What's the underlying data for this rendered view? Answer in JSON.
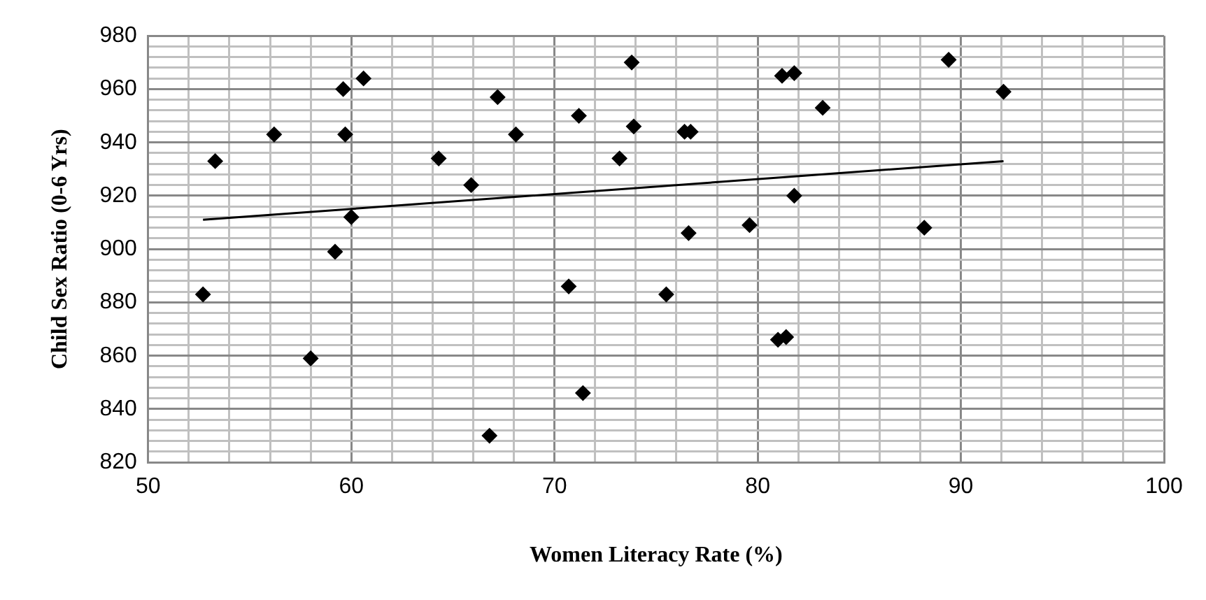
{
  "chart_data": {
    "type": "scatter",
    "xlabel": "Women Literacy Rate (%)",
    "ylabel": "Child Sex Ratio (0-6 Yrs)",
    "xlim": [
      50,
      100
    ],
    "ylim": [
      820,
      980
    ],
    "xticks": [
      50,
      {
        "value": 52,
        "label": null
      },
      {
        "value": 54,
        "label": null
      },
      {
        "value": 56,
        "label": null
      },
      {
        "value": 58,
        "label": null
      },
      60,
      {
        "value": 62,
        "label": null
      },
      {
        "value": 64,
        "label": null
      },
      {
        "value": 66,
        "label": null
      },
      {
        "value": 68,
        "label": null
      },
      70,
      {
        "value": 72,
        "label": null
      },
      {
        "value": 74,
        "label": null
      },
      {
        "value": 76,
        "label": null
      },
      {
        "value": 78,
        "label": null
      },
      80,
      {
        "value": 82,
        "label": null
      },
      {
        "value": 84,
        "label": null
      },
      {
        "value": 86,
        "label": null
      },
      {
        "value": 88,
        "label": null
      },
      90,
      {
        "value": 92,
        "label": null
      },
      {
        "value": 94,
        "label": null
      },
      {
        "value": 96,
        "label": null
      },
      {
        "value": 98,
        "label": null
      },
      100
    ],
    "yticks": [
      820,
      {
        "value": 824,
        "label": null
      },
      {
        "value": 828,
        "label": null
      },
      {
        "value": 832,
        "label": null
      },
      {
        "value": 836,
        "label": null
      },
      840,
      {
        "value": 844,
        "label": null
      },
      {
        "value": 848,
        "label": null
      },
      {
        "value": 852,
        "label": null
      },
      {
        "value": 856,
        "label": null
      },
      860,
      {
        "value": 864,
        "label": null
      },
      {
        "value": 868,
        "label": null
      },
      {
        "value": 872,
        "label": null
      },
      {
        "value": 876,
        "label": null
      },
      880,
      {
        "value": 884,
        "label": null
      },
      {
        "value": 888,
        "label": null
      },
      {
        "value": 892,
        "label": null
      },
      {
        "value": 896,
        "label": null
      },
      900,
      {
        "value": 904,
        "label": null
      },
      {
        "value": 908,
        "label": null
      },
      {
        "value": 912,
        "label": null
      },
      {
        "value": 916,
        "label": null
      },
      920,
      {
        "value": 924,
        "label": null
      },
      {
        "value": 928,
        "label": null
      },
      {
        "value": 932,
        "label": null
      },
      {
        "value": 936,
        "label": null
      },
      940,
      {
        "value": 944,
        "label": null
      },
      {
        "value": 948,
        "label": null
      },
      {
        "value": 952,
        "label": null
      },
      {
        "value": 956,
        "label": null
      },
      960,
      {
        "value": 964,
        "label": null
      },
      {
        "value": 968,
        "label": null
      },
      {
        "value": 972,
        "label": null
      },
      {
        "value": 976,
        "label": null
      },
      980
    ],
    "grid": true,
    "marker": "diamond",
    "series": [
      {
        "type": "scatter",
        "color": "#000000",
        "x": [
          52.7,
          53.3,
          56.2,
          58,
          59.2,
          59.6,
          59.7,
          60,
          60.6,
          64.3,
          65.9,
          66.8,
          67.2,
          68.1,
          70.7,
          71.2,
          71.4,
          73.2,
          73.8,
          73.9,
          75.5,
          76.4,
          76.7,
          76.6,
          79.6,
          81,
          81.4,
          81.2,
          81.8,
          81.8,
          83.2,
          88.2,
          89.4,
          92.1
        ],
        "values": [
          883,
          933,
          943,
          859,
          899,
          960,
          943,
          912,
          964,
          934,
          924,
          830,
          957,
          943,
          886,
          950,
          846,
          934,
          970,
          946,
          883,
          944,
          944,
          906,
          909,
          866,
          867,
          965,
          966,
          920,
          953,
          908,
          971,
          959
        ]
      },
      {
        "type": "line",
        "color": "#000000",
        "marker": "none",
        "line_style": "solid",
        "x": [
          52.7,
          92.1
        ],
        "values": [
          911,
          933
        ]
      }
    ]
  }
}
